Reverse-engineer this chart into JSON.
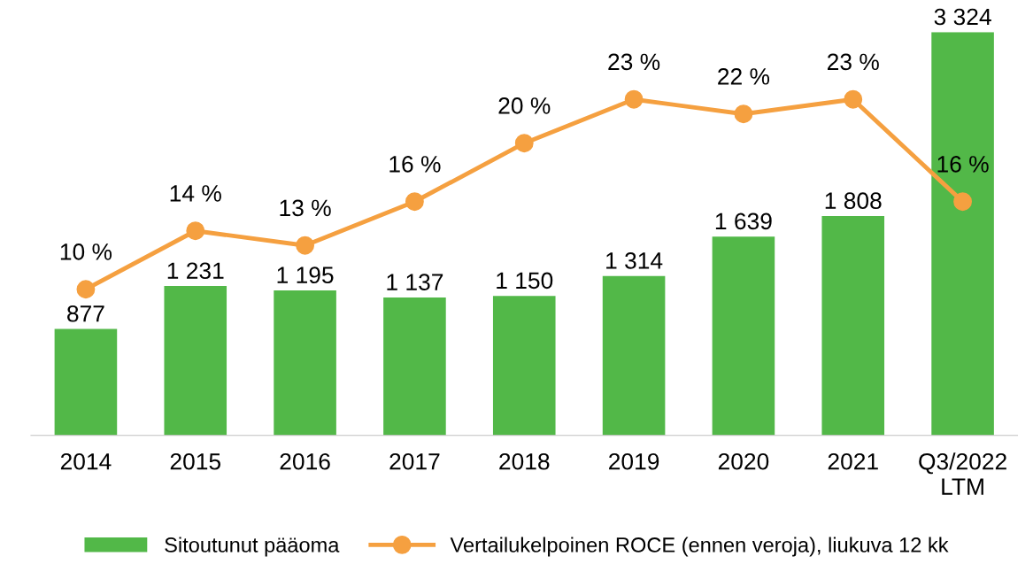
{
  "chart_data": {
    "type": "bar",
    "categories": [
      "2014",
      "2015",
      "2016",
      "2017",
      "2018",
      "2019",
      "2020",
      "2021",
      "Q3/2022\nLTM"
    ],
    "series": [
      {
        "name": "Sitoutunut pääoma",
        "color": "#52b848",
        "values": [
          877,
          1231,
          1195,
          1137,
          1150,
          1314,
          1639,
          1808,
          3324
        ],
        "value_labels": [
          "877",
          "1 231",
          "1 195",
          "1 137",
          "1 150",
          "1 314",
          "1 639",
          "1 808",
          "3 324"
        ]
      },
      {
        "name": "Vertailukelpoinen ROCE (ennen veroja), liukuva 12 kk",
        "type": "line",
        "axis": "y2",
        "color": "#f5a040",
        "marker": "circle",
        "values": [
          10,
          14,
          13,
          16,
          20,
          23,
          22,
          23,
          16
        ],
        "value_labels": [
          "10 %",
          "14 %",
          "13 %",
          "16 %",
          "20 %",
          "23 %",
          "22 %",
          "23 %",
          "16 %"
        ]
      }
    ],
    "grid": false,
    "legend": "bottom"
  }
}
